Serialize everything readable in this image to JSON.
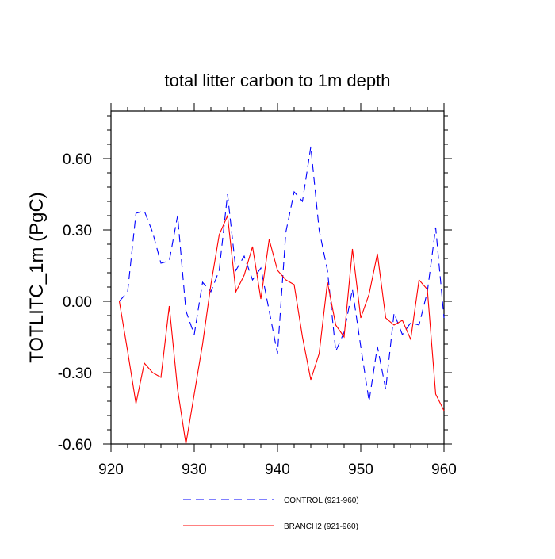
{
  "chart_data": {
    "type": "line",
    "title": "total litter carbon to 1m depth",
    "xlabel": "",
    "ylabel": "TOTLITC_1m  (PgC)",
    "xlim": [
      920,
      960
    ],
    "ylim": [
      -0.6,
      0.8
    ],
    "x_ticks": [
      920,
      930,
      940,
      950,
      960
    ],
    "x_tick_labels": [
      "920",
      "930",
      "940",
      "950",
      "960"
    ],
    "y_ticks": [
      -0.6,
      -0.3,
      0.0,
      0.3,
      0.6
    ],
    "y_tick_labels": [
      "-0.60",
      "-0.30",
      "0.00",
      "0.30",
      "0.60"
    ],
    "grid": false,
    "legend_position": "bottom",
    "x": [
      921,
      922,
      923,
      924,
      925,
      926,
      927,
      928,
      929,
      930,
      931,
      932,
      933,
      934,
      935,
      936,
      937,
      938,
      939,
      940,
      941,
      942,
      943,
      944,
      945,
      946,
      947,
      948,
      949,
      950,
      951,
      952,
      953,
      954,
      955,
      956,
      957,
      958,
      959,
      960
    ],
    "series": [
      {
        "name": "CONTROL (921-960)",
        "color": "#0000ff",
        "dash": "dashed",
        "values": [
          0.0,
          0.04,
          0.37,
          0.38,
          0.29,
          0.16,
          0.17,
          0.36,
          -0.04,
          -0.14,
          0.08,
          0.04,
          0.13,
          0.45,
          0.13,
          0.19,
          0.09,
          0.14,
          -0.04,
          -0.22,
          0.29,
          0.46,
          0.42,
          0.65,
          0.3,
          0.13,
          -0.21,
          -0.13,
          0.05,
          -0.19,
          -0.42,
          -0.19,
          -0.37,
          -0.05,
          -0.14,
          -0.09,
          -0.1,
          0.04,
          0.31,
          -0.07
        ]
      },
      {
        "name": "BRANCH2 (921-960)",
        "color": "#ff0000",
        "dash": "solid",
        "values": [
          0.0,
          -0.21,
          -0.43,
          -0.26,
          -0.3,
          -0.32,
          -0.02,
          -0.37,
          -0.6,
          -0.39,
          -0.18,
          0.07,
          0.28,
          0.36,
          0.04,
          0.11,
          0.23,
          0.01,
          0.26,
          0.13,
          0.09,
          0.07,
          -0.15,
          -0.33,
          -0.22,
          0.08,
          -0.1,
          -0.15,
          0.22,
          -0.07,
          0.03,
          0.2,
          -0.07,
          -0.1,
          -0.08,
          -0.16,
          0.09,
          0.05,
          -0.39,
          -0.46
        ]
      }
    ]
  }
}
